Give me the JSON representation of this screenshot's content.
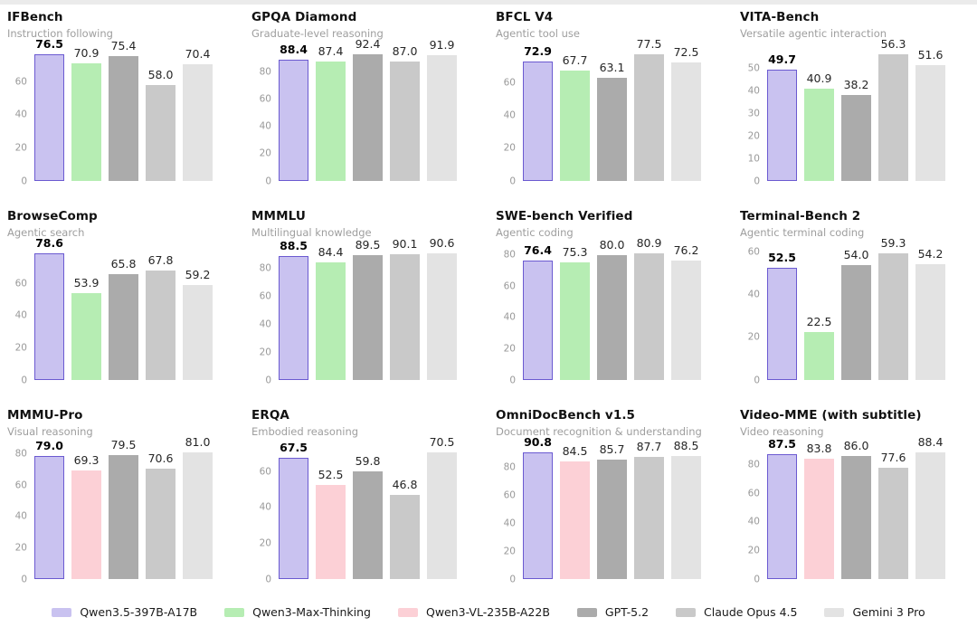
{
  "page": {
    "background": "#ffffff",
    "top_strip_color": "#ebebeb"
  },
  "palette": {
    "Qwen3.5-397B-A17B": {
      "fill": "#c9c2f0",
      "border": "#6b5ad1"
    },
    "Qwen3-Max-Thinking": {
      "fill": "#b6edb3",
      "border": ""
    },
    "Qwen3-VL-235B-A22B": {
      "fill": "#fcd0d6",
      "border": ""
    },
    "GPT-5.2": {
      "fill": "#ababab",
      "border": ""
    },
    "Claude Opus 4.5": {
      "fill": "#c9c9c9",
      "border": ""
    },
    "Gemini 3 Pro": {
      "fill": "#e3e3e3",
      "border": ""
    }
  },
  "legend": {
    "items": [
      {
        "label": "Qwen3.5-397B-A17B",
        "color": "#c9c2f0"
      },
      {
        "label": "Qwen3-Max-Thinking",
        "color": "#b6edb3"
      },
      {
        "label": "Qwen3-VL-235B-A22B",
        "color": "#fcd0d6"
      },
      {
        "label": "GPT-5.2",
        "color": "#ababab"
      },
      {
        "label": "Claude Opus 4.5",
        "color": "#c9c9c9"
      },
      {
        "label": "Gemini 3 Pro",
        "color": "#e3e3e3"
      }
    ]
  },
  "chart_data": [
    {
      "type": "bar",
      "title": "IFBench",
      "subtitle": "Instruction following",
      "categories": [
        "Qwen3.5-397B-A17B",
        "Qwen3-Max-Thinking",
        "GPT-5.2",
        "Claude Opus 4.5",
        "Gemini 3 Pro"
      ],
      "values": [
        76.5,
        70.9,
        75.4,
        58.0,
        70.4
      ],
      "yticks": [
        0,
        20,
        40,
        60
      ],
      "ylim": [
        0,
        78.8
      ],
      "grid": false,
      "legend_position": "bottom-shared"
    },
    {
      "type": "bar",
      "title": "GPQA Diamond",
      "subtitle": "Graduate-level reasoning",
      "categories": [
        "Qwen3.5-397B-A17B",
        "Qwen3-Max-Thinking",
        "GPT-5.2",
        "Claude Opus 4.5",
        "Gemini 3 Pro"
      ],
      "values": [
        88.4,
        87.4,
        92.4,
        87.0,
        91.9
      ],
      "yticks": [
        0,
        20,
        40,
        60,
        80
      ],
      "ylim": [
        0,
        95.2
      ],
      "grid": false,
      "legend_position": "bottom-shared"
    },
    {
      "type": "bar",
      "title": "BFCL V4",
      "subtitle": "Agentic tool use",
      "categories": [
        "Qwen3.5-397B-A17B",
        "Qwen3-Max-Thinking",
        "GPT-5.2",
        "Claude Opus 4.5",
        "Gemini 3 Pro"
      ],
      "values": [
        72.9,
        67.7,
        63.1,
        77.5,
        72.5
      ],
      "yticks": [
        0,
        20,
        40,
        60
      ],
      "ylim": [
        0,
        79.8
      ],
      "grid": false,
      "legend_position": "bottom-shared"
    },
    {
      "type": "bar",
      "title": "VITA-Bench",
      "subtitle": "Versatile agentic interaction",
      "categories": [
        "Qwen3.5-397B-A17B",
        "Qwen3-Max-Thinking",
        "GPT-5.2",
        "Claude Opus 4.5",
        "Gemini 3 Pro"
      ],
      "values": [
        49.7,
        40.9,
        38.2,
        56.3,
        51.6
      ],
      "yticks": [
        0,
        10,
        20,
        30,
        40,
        50
      ],
      "ylim": [
        0,
        58.0
      ],
      "grid": false,
      "legend_position": "bottom-shared"
    },
    {
      "type": "bar",
      "title": "BrowseComp",
      "subtitle": "Agentic search",
      "categories": [
        "Qwen3.5-397B-A17B",
        "Qwen3-Max-Thinking",
        "GPT-5.2",
        "Claude Opus 4.5",
        "Gemini 3 Pro"
      ],
      "values": [
        78.6,
        53.9,
        65.8,
        67.8,
        59.2
      ],
      "yticks": [
        0,
        20,
        40,
        60
      ],
      "ylim": [
        0,
        81.0
      ],
      "grid": false,
      "legend_position": "bottom-shared"
    },
    {
      "type": "bar",
      "title": "MMMLU",
      "subtitle": "Multilingual knowledge",
      "categories": [
        "Qwen3.5-397B-A17B",
        "Qwen3-Max-Thinking",
        "GPT-5.2",
        "Claude Opus 4.5",
        "Gemini 3 Pro"
      ],
      "values": [
        88.5,
        84.4,
        89.5,
        90.1,
        90.6
      ],
      "yticks": [
        0,
        20,
        40,
        60,
        80
      ],
      "ylim": [
        0,
        93.3
      ],
      "grid": false,
      "legend_position": "bottom-shared"
    },
    {
      "type": "bar",
      "title": "SWE-bench Verified",
      "subtitle": "Agentic coding",
      "categories": [
        "Qwen3.5-397B-A17B",
        "Qwen3-Max-Thinking",
        "GPT-5.2",
        "Claude Opus 4.5",
        "Gemini 3 Pro"
      ],
      "values": [
        76.4,
        75.3,
        80.0,
        80.9,
        76.2
      ],
      "yticks": [
        0,
        20,
        40,
        60,
        80
      ],
      "ylim": [
        0,
        83.3
      ],
      "grid": false,
      "legend_position": "bottom-shared"
    },
    {
      "type": "bar",
      "title": "Terminal-Bench 2",
      "subtitle": "Agentic terminal coding",
      "categories": [
        "Qwen3.5-397B-A17B",
        "Qwen3-Max-Thinking",
        "GPT-5.2",
        "Claude Opus 4.5",
        "Gemini 3 Pro"
      ],
      "values": [
        52.5,
        22.5,
        54.0,
        59.3,
        54.2
      ],
      "yticks": [
        0,
        20,
        40,
        60
      ],
      "ylim": [
        0,
        61.1
      ],
      "grid": false,
      "legend_position": "bottom-shared"
    },
    {
      "type": "bar",
      "title": "MMMU-Pro",
      "subtitle": "Visual reasoning",
      "categories": [
        "Qwen3.5-397B-A17B",
        "Qwen3-VL-235B-A22B",
        "GPT-5.2",
        "Claude Opus 4.5",
        "Gemini 3 Pro"
      ],
      "values": [
        79.0,
        69.3,
        79.5,
        70.6,
        81.0
      ],
      "yticks": [
        0,
        20,
        40,
        60,
        80
      ],
      "ylim": [
        0,
        83.4
      ],
      "grid": false,
      "legend_position": "bottom-shared"
    },
    {
      "type": "bar",
      "title": "ERQA",
      "subtitle": "Embodied reasoning",
      "categories": [
        "Qwen3.5-397B-A17B",
        "Qwen3-VL-235B-A22B",
        "GPT-5.2",
        "Claude Opus 4.5",
        "Gemini 3 Pro"
      ],
      "values": [
        67.5,
        52.5,
        59.8,
        46.8,
        70.5
      ],
      "yticks": [
        0,
        20,
        40,
        60
      ],
      "ylim": [
        0,
        72.6
      ],
      "grid": false,
      "legend_position": "bottom-shared"
    },
    {
      "type": "bar",
      "title": "OmniDocBench v1.5",
      "subtitle": "Document recognition & understanding",
      "categories": [
        "Qwen3.5-397B-A17B",
        "Qwen3-VL-235B-A22B",
        "GPT-5.2",
        "Claude Opus 4.5",
        "Gemini 3 Pro"
      ],
      "values": [
        90.8,
        84.5,
        85.7,
        87.7,
        88.5
      ],
      "yticks": [
        0,
        20,
        40,
        60,
        80
      ],
      "ylim": [
        0,
        93.5
      ],
      "grid": false,
      "legend_position": "bottom-shared"
    },
    {
      "type": "bar",
      "title": "Video-MME (with subtitle)",
      "subtitle": "Video reasoning",
      "categories": [
        "Qwen3.5-397B-A17B",
        "Qwen3-VL-235B-A22B",
        "GPT-5.2",
        "Claude Opus 4.5",
        "Gemini 3 Pro"
      ],
      "values": [
        87.5,
        83.8,
        86.0,
        77.6,
        88.4
      ],
      "yticks": [
        0,
        20,
        40,
        60,
        80
      ],
      "ylim": [
        0,
        91.0
      ],
      "grid": false,
      "legend_position": "bottom-shared"
    }
  ]
}
